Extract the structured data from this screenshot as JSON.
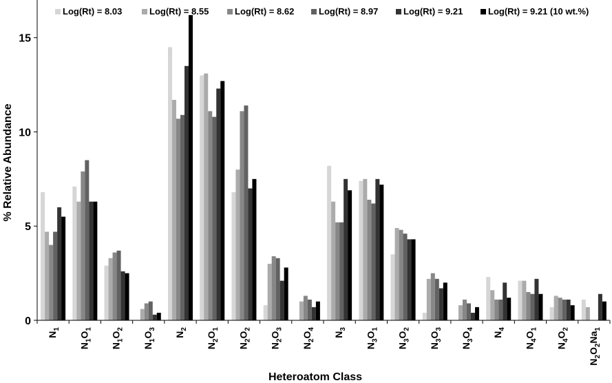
{
  "chart_data": {
    "type": "bar",
    "xlabel": "Heteroatom Class",
    "ylabel": "% Relative Abundance",
    "ylim": [
      0,
      17
    ],
    "yticks": [
      0,
      5,
      10,
      15
    ],
    "grid": false,
    "legend_position": "top",
    "categories": [
      {
        "base": "N",
        "parts": [
          [
            "N",
            "1"
          ]
        ]
      },
      {
        "base": "N1O1",
        "parts": [
          [
            "N",
            "1"
          ],
          [
            "O",
            "1"
          ]
        ]
      },
      {
        "base": "N1O2",
        "parts": [
          [
            "N",
            "1"
          ],
          [
            "O",
            "2"
          ]
        ]
      },
      {
        "base": "N1O3",
        "parts": [
          [
            "N",
            "1"
          ],
          [
            "O",
            "3"
          ]
        ]
      },
      {
        "base": "N2",
        "parts": [
          [
            "N",
            "2"
          ]
        ]
      },
      {
        "base": "N2O1",
        "parts": [
          [
            "N",
            "2"
          ],
          [
            "O",
            "1"
          ]
        ]
      },
      {
        "base": "N2O2",
        "parts": [
          [
            "N",
            "2"
          ],
          [
            "O",
            "2"
          ]
        ]
      },
      {
        "base": "N2O3",
        "parts": [
          [
            "N",
            "2"
          ],
          [
            "O",
            "3"
          ]
        ]
      },
      {
        "base": "N2O4",
        "parts": [
          [
            "N",
            "2"
          ],
          [
            "O",
            "4"
          ]
        ]
      },
      {
        "base": "N3",
        "parts": [
          [
            "N",
            "3"
          ]
        ]
      },
      {
        "base": "N3O1",
        "parts": [
          [
            "N",
            "3"
          ],
          [
            "O",
            "1"
          ]
        ]
      },
      {
        "base": "N3O2",
        "parts": [
          [
            "N",
            "3"
          ],
          [
            "O",
            "2"
          ]
        ]
      },
      {
        "base": "N3O3",
        "parts": [
          [
            "N",
            "3"
          ],
          [
            "O",
            "3"
          ]
        ]
      },
      {
        "base": "N3O4",
        "parts": [
          [
            "N",
            "3"
          ],
          [
            "O",
            "4"
          ]
        ]
      },
      {
        "base": "N4",
        "parts": [
          [
            "N",
            "4"
          ]
        ]
      },
      {
        "base": "N4O1",
        "parts": [
          [
            "N",
            "4"
          ],
          [
            "O",
            "1"
          ]
        ]
      },
      {
        "base": "N4O2",
        "parts": [
          [
            "N",
            "4"
          ],
          [
            "O",
            "2"
          ]
        ]
      },
      {
        "base": "N2O2Na1",
        "parts": [
          [
            "N",
            "2"
          ],
          [
            "O",
            "2"
          ],
          [
            "Na",
            "1"
          ]
        ]
      }
    ],
    "series": [
      {
        "name": "Log(Rt) = 8.03",
        "color": "#d6d6d6",
        "values": [
          6.8,
          7.1,
          2.9,
          0.0,
          14.5,
          13.0,
          6.8,
          0.8,
          0.0,
          8.2,
          7.4,
          3.5,
          0.4,
          0.0,
          2.3,
          2.1,
          0.7,
          1.1
        ]
      },
      {
        "name": "Log(Rt) = 8.55",
        "color": "#ababab",
        "values": [
          4.7,
          6.3,
          3.3,
          0.6,
          11.7,
          13.1,
          8.0,
          3.0,
          1.0,
          6.3,
          7.5,
          4.9,
          2.2,
          0.8,
          1.6,
          2.1,
          1.3,
          0.7
        ]
      },
      {
        "name": "Log(Rt) = 8.62",
        "color": "#878787",
        "values": [
          4.0,
          7.9,
          3.6,
          0.9,
          10.7,
          11.1,
          11.1,
          3.4,
          1.3,
          5.2,
          6.4,
          4.8,
          2.5,
          1.1,
          1.1,
          1.5,
          1.2,
          0.0
        ]
      },
      {
        "name": "Log(Rt) = 8.97",
        "color": "#626262",
        "values": [
          4.7,
          8.5,
          3.7,
          1.0,
          10.9,
          10.8,
          11.4,
          3.3,
          1.1,
          5.2,
          6.2,
          4.6,
          2.2,
          0.9,
          1.1,
          1.4,
          1.1,
          0.0
        ]
      },
      {
        "name": "Log(Rt) = 9.21",
        "color": "#333333",
        "values": [
          6.0,
          6.3,
          2.6,
          0.3,
          13.5,
          12.3,
          7.0,
          2.1,
          0.7,
          7.5,
          7.5,
          4.3,
          1.7,
          0.4,
          2.0,
          2.2,
          1.1,
          1.4
        ]
      },
      {
        "name": "Log(Rt) = 9.21 (10 wt.%)",
        "color": "#000000",
        "values": [
          5.5,
          6.3,
          2.5,
          0.4,
          16.2,
          12.7,
          7.5,
          2.8,
          1.0,
          6.9,
          7.2,
          4.3,
          2.0,
          0.7,
          1.2,
          1.4,
          0.8,
          1.0
        ]
      }
    ]
  }
}
